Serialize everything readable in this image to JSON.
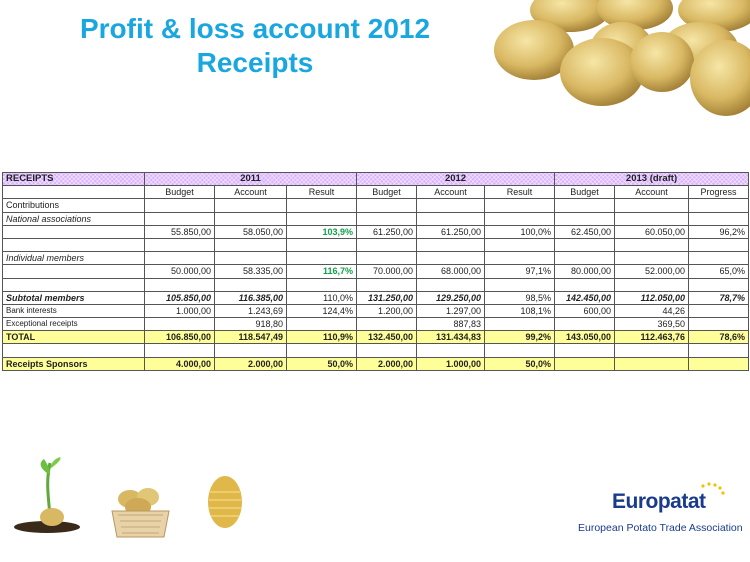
{
  "title": {
    "line1": "Profit & loss account 2012",
    "line2": "Receipts"
  },
  "table": {
    "header": {
      "label": "RECEIPTS",
      "year1": "2011",
      "year2": "2012",
      "year3": "2013 (draft)"
    },
    "subheader": [
      "Budget",
      "Account",
      "Result",
      "Budget",
      "Account",
      "Result",
      "Budget",
      "Account",
      "Progress"
    ],
    "rows": {
      "contributions": {
        "label": "Contributions"
      },
      "national": {
        "label": "National associations"
      },
      "national_vals": [
        "55.850,00",
        "58.050,00",
        "103,9%",
        "61.250,00",
        "61.250,00",
        "100,0%",
        "62.450,00",
        "60.050,00",
        "96,2%"
      ],
      "individual": {
        "label": "Individual members"
      },
      "individual_vals": [
        "50.000,00",
        "58.335,00",
        "116,7%",
        "70.000,00",
        "68.000,00",
        "97,1%",
        "80.000,00",
        "52.000,00",
        "65,0%"
      ],
      "subtotal": {
        "label": "Subtotal members",
        "vals": [
          "105.850,00",
          "116.385,00",
          "110,0%",
          "131.250,00",
          "129.250,00",
          "98,5%",
          "142.450,00",
          "112.050,00",
          "78,7%"
        ]
      },
      "bank": {
        "label": "Bank interests",
        "vals": [
          "1.000,00",
          "1.243,69",
          "124,4%",
          "1.200,00",
          "1.297,00",
          "108,1%",
          "600,00",
          "44,26",
          ""
        ]
      },
      "exceptional": {
        "label": "Exceptional receipts",
        "vals": [
          "",
          "918,80",
          "",
          "",
          "887,83",
          "",
          "",
          "369,50",
          ""
        ]
      },
      "total": {
        "label": "TOTAL",
        "vals": [
          "106.850,00",
          "118.547,49",
          "110,9%",
          "132.450,00",
          "131.434,83",
          "99,2%",
          "143.050,00",
          "112.463,76",
          "78,6%"
        ]
      },
      "sponsors": {
        "label": "Receipts Sponsors",
        "vals": [
          "4.000,00",
          "2.000,00",
          "50,0%",
          "2.000,00",
          "1.000,00",
          "50,0%",
          "",
          "",
          ""
        ]
      }
    }
  },
  "logo": {
    "word": "Europatat",
    "subtitle": "European Potato Trade Association"
  },
  "colors": {
    "title": "#1aa7e0",
    "header_bg": "#d9b3ff",
    "highlight_row": "#ffff99",
    "positive_result": "#11a04a",
    "logo": "#1a3b8c"
  }
}
